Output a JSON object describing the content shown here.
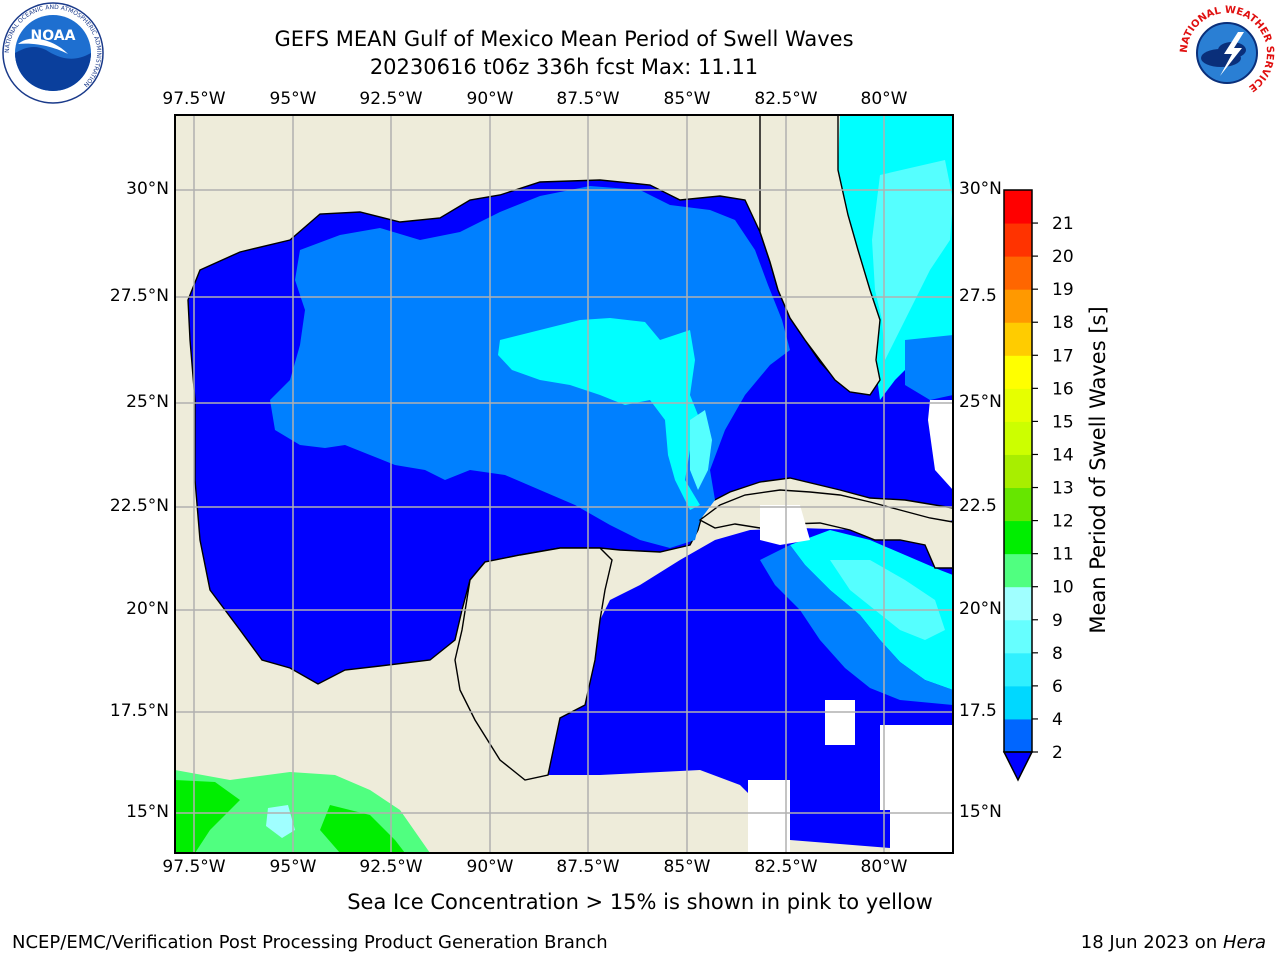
{
  "title": {
    "line1": "GEFS MEAN Gulf of Mexico Mean Period of Swell Waves",
    "line2": "20230616 t06z 336h fcst   Max: 11.11"
  },
  "map": {
    "lon_labels": [
      "97.5°W",
      "95°W",
      "92.5°W",
      "90°W",
      "87.5°W",
      "85°W",
      "82.5°W",
      "80°W"
    ],
    "lat_labels_left": [
      "30°N",
      "27.5°N",
      "25°N",
      "22.5°N",
      "20°N",
      "17.5°N",
      "15°N"
    ],
    "lat_labels_right": [
      "30°N",
      "27.5",
      "25°N",
      "22.5",
      "20°N",
      "17.5",
      "15°N"
    ]
  },
  "colorbar": {
    "label": "Mean Period of Swell Waves [s]",
    "ticks": [
      "2",
      "4",
      "6",
      "8",
      "9",
      "10",
      "11",
      "12",
      "13",
      "14",
      "15",
      "16",
      "17",
      "18",
      "19",
      "20",
      "21"
    ],
    "colors": [
      "#0066ff",
      "#00d8ff",
      "#30f0ff",
      "#66ffff",
      "#a0ffff",
      "#50ff80",
      "#00ee00",
      "#66e600",
      "#a8ee00",
      "#ccff00",
      "#e6ff00",
      "#ffff00",
      "#ffcc00",
      "#ff9900",
      "#ff6600",
      "#ff3300",
      "#ff0000"
    ],
    "under_color": "#0000ff"
  },
  "legend": {
    "land_color": "#eeecda",
    "colors": {
      "period_2_4": "#0000ff",
      "period_4_6": "#0080ff",
      "period_6_8": "#00ffff",
      "period_8_9": "#55ffff",
      "period_9_10": "#a0ffff",
      "period_10_11": "#50ff80",
      "period_11_12": "#00ee00"
    }
  },
  "sea_ice_note": "Sea Ice Concentration > 15% is shown in pink to yellow",
  "footer": {
    "left": "NCEP/EMC/Verification Post Processing Product Generation Branch",
    "right_date": "18 Jun 2023 on ",
    "right_host": "Hera"
  },
  "logos": {
    "noaa": "NOAA",
    "noaa_ring": "NATIONAL OCEANIC AND ATMOSPHERIC ADMINISTRATION",
    "nws_ring": "NATIONAL WEATHER SERVICE"
  }
}
